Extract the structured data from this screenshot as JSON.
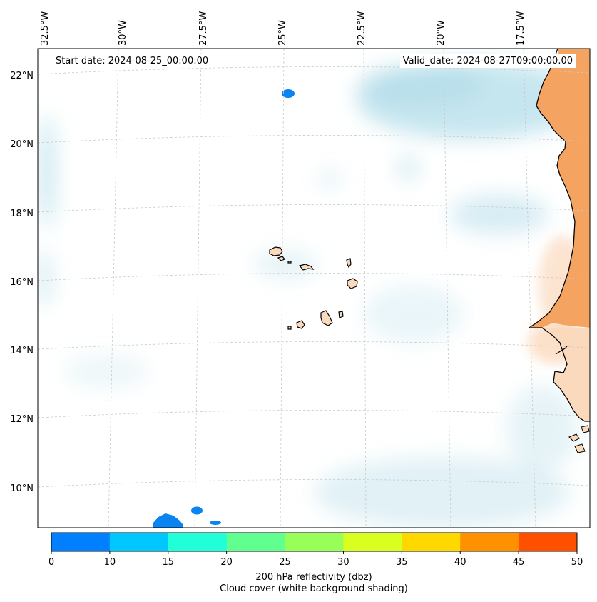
{
  "map": {
    "longitude_labels": [
      "32.5°W",
      "30°W",
      "27.5°W",
      "25°W",
      "22.5°W",
      "20°W",
      "17.5°W"
    ],
    "latitude_labels": [
      "22°N",
      "20°N",
      "18°N",
      "16°N",
      "14°N",
      "12°N",
      "10°N"
    ],
    "start_date_label": "Start date: 2024-08-25_00:00:00",
    "valid_date_label": "Valid_date: 2024-08-27T09:00:00.00"
  },
  "colorbar": {
    "title": "200 hPa reflectivity (dbz)",
    "subtitle": "Cloud cover (white background shading)",
    "ticks": [
      "0",
      "10",
      "15",
      "20",
      "25",
      "30",
      "35",
      "40",
      "45",
      "50"
    ],
    "colors": [
      "#0080ff",
      "#00c8ff",
      "#20ffd8",
      "#60ff90",
      "#98ff58",
      "#d8ff20",
      "#ffd800",
      "#ff9000",
      "#ff5000"
    ]
  },
  "colors": {
    "land": "#f4a460",
    "land_light": "#fbd9bd",
    "cloud": "#a8d8e6",
    "echo": "#0a84f0"
  }
}
